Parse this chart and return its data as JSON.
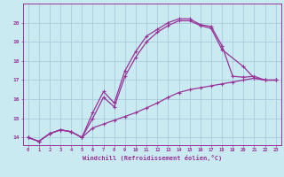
{
  "xlabel": "Windchill (Refroidissement éolien,°C)",
  "bg_color": "#c8eaf0",
  "line_color": "#993399",
  "grid_color": "#aaccdd",
  "xlim": [
    -0.5,
    23.5
  ],
  "ylim": [
    13.6,
    21.0
  ],
  "xticks": [
    0,
    1,
    2,
    3,
    4,
    5,
    6,
    7,
    8,
    9,
    10,
    11,
    12,
    13,
    14,
    15,
    16,
    17,
    18,
    19,
    20,
    21,
    22,
    23
  ],
  "yticks": [
    14,
    15,
    16,
    17,
    18,
    19,
    20
  ],
  "curves": [
    {
      "x": [
        0,
        1,
        2,
        3,
        4,
        5,
        6,
        7,
        8,
        9,
        10,
        11,
        12,
        13,
        14,
        15,
        16,
        17,
        18,
        19,
        20,
        21,
        22,
        23
      ],
      "y": [
        14.0,
        13.8,
        14.2,
        14.4,
        14.3,
        14.0,
        15.3,
        16.4,
        15.8,
        17.5,
        18.5,
        19.3,
        19.65,
        20.0,
        20.2,
        20.2,
        19.9,
        19.8,
        18.8,
        17.2,
        17.15,
        17.2,
        17.0,
        17.0
      ]
    },
    {
      "x": [
        0,
        1,
        2,
        3,
        4,
        5,
        6,
        7,
        8,
        9,
        10,
        11,
        12,
        13,
        14,
        15,
        16,
        17,
        18,
        19,
        20,
        21,
        22,
        23
      ],
      "y": [
        14.0,
        13.8,
        14.2,
        14.4,
        14.3,
        14.0,
        14.5,
        14.7,
        14.9,
        15.1,
        15.3,
        15.55,
        15.8,
        16.1,
        16.35,
        16.5,
        16.6,
        16.7,
        16.8,
        16.9,
        17.0,
        17.1,
        17.0,
        17.0
      ]
    },
    {
      "x": [
        0,
        1,
        2,
        3,
        4,
        5,
        6,
        7,
        8,
        9,
        10,
        11,
        12,
        13,
        14,
        15,
        16,
        17,
        18,
        20,
        21,
        22,
        23
      ],
      "y": [
        14.0,
        13.8,
        14.2,
        14.4,
        14.3,
        14.0,
        15.0,
        16.1,
        15.6,
        17.2,
        18.2,
        19.0,
        19.5,
        19.85,
        20.1,
        20.1,
        19.85,
        19.7,
        18.6,
        17.7,
        17.1,
        17.0,
        17.0
      ]
    }
  ],
  "marker": "+",
  "markersize": 3,
  "linewidth": 0.9
}
